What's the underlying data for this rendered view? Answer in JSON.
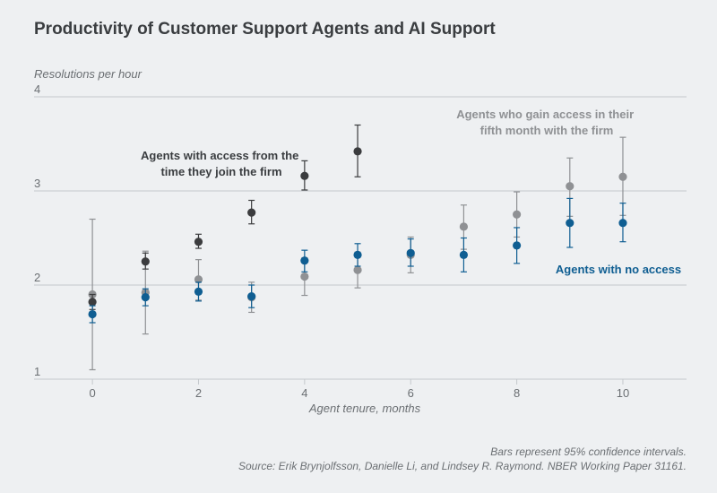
{
  "chart_data": {
    "type": "scatter",
    "title": "Productivity of Customer Support Agents and AI Support",
    "ylabel": "Resolutions per hour",
    "xlabel": "Agent tenure, months",
    "xlim": [
      -1.1,
      11.2
    ],
    "ylim": [
      1,
      4
    ],
    "xticks": [
      0,
      2,
      4,
      6,
      8,
      10
    ],
    "yticks": [
      1,
      2,
      3,
      4
    ],
    "grid": "horizontal",
    "colors": {
      "background": "#eef0f2",
      "grid": "#c4c8cc",
      "text": "#3a3d40",
      "muted": "#6b6f73",
      "no_access": "#0f5e92",
      "late_access": "#8f9194",
      "early_access": "#3b3c3e"
    },
    "series": [
      {
        "key": "late",
        "color": "#8f9194",
        "x": [
          0,
          1,
          2,
          3,
          4,
          5,
          6,
          7,
          8,
          9,
          10
        ],
        "y": [
          1.9,
          1.92,
          2.06,
          1.87,
          2.09,
          2.16,
          2.32,
          2.62,
          2.75,
          3.05,
          3.15
        ],
        "lower": [
          1.1,
          1.48,
          1.84,
          1.71,
          1.89,
          1.97,
          2.13,
          2.38,
          2.51,
          2.73,
          2.74
        ],
        "upper": [
          2.7,
          2.36,
          2.27,
          2.03,
          2.29,
          2.35,
          2.51,
          2.85,
          2.99,
          3.35,
          3.57
        ]
      },
      {
        "key": "early",
        "color": "#3b3c3e",
        "x": [
          0,
          1,
          2,
          3,
          4,
          5
        ],
        "y": [
          1.82,
          2.25,
          2.46,
          2.77,
          3.16,
          3.42
        ],
        "lower": [
          1.74,
          2.17,
          2.39,
          2.65,
          3.01,
          3.15
        ],
        "upper": [
          1.9,
          2.34,
          2.54,
          2.9,
          3.32,
          3.7
        ]
      },
      {
        "key": "none",
        "color": "#0f5e92",
        "x": [
          0,
          1,
          2,
          3,
          4,
          5,
          6,
          7,
          8,
          9,
          10
        ],
        "y": [
          1.69,
          1.87,
          1.93,
          1.88,
          2.26,
          2.32,
          2.34,
          2.32,
          2.42,
          2.66,
          2.66
        ],
        "lower": [
          1.6,
          1.78,
          1.83,
          1.76,
          2.14,
          2.2,
          2.2,
          2.14,
          2.23,
          2.4,
          2.46
        ],
        "upper": [
          1.78,
          1.96,
          2.03,
          2.0,
          2.37,
          2.44,
          2.49,
          2.5,
          2.61,
          2.92,
          2.87
        ]
      }
    ],
    "annotations": {
      "early": [
        "Agents with access from the",
        "time they join the firm"
      ],
      "late": [
        "Agents who gain access in their",
        "fifth month with the firm"
      ],
      "none": "Agents with no access"
    },
    "footnote": "Bars represent 95% confidence intervals.",
    "source": "Source: Erik Brynjolfsson, Danielle Li, and Lindsey R. Raymond. NBER Working Paper 31161."
  }
}
